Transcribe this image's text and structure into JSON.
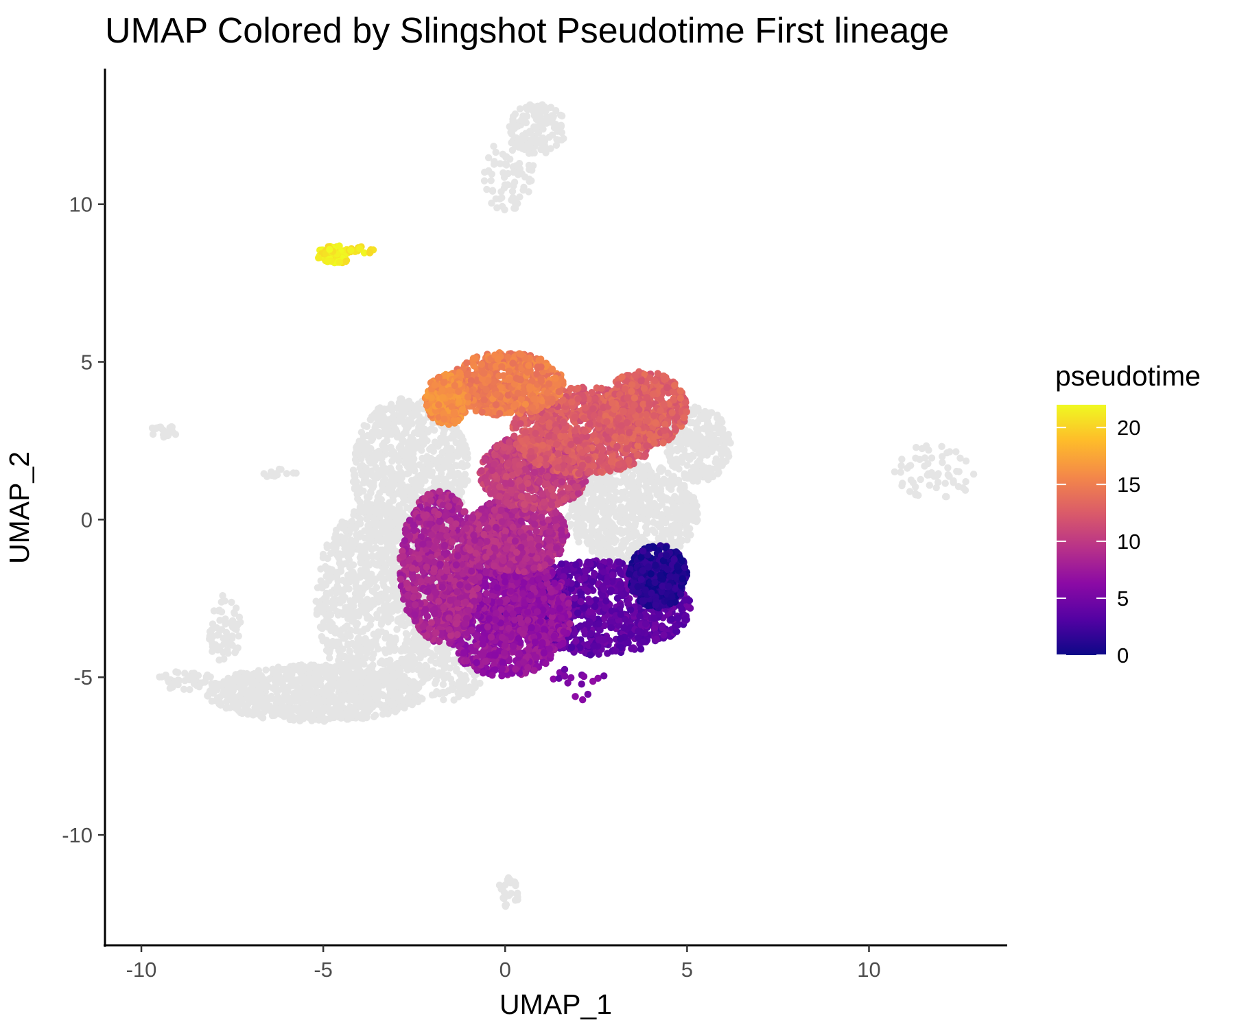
{
  "chart_data": {
    "type": "scatter",
    "title": "UMAP Colored by Slingshot Pseudotime First lineage",
    "xlabel": "UMAP_1",
    "ylabel": "UMAP_2",
    "xlim": [
      -11,
      13.8
    ],
    "ylim": [
      -13.5,
      14.3
    ],
    "x_ticks": [
      -10,
      -5,
      0,
      5,
      10
    ],
    "y_ticks": [
      -10,
      -5,
      0,
      5,
      10
    ],
    "x_tick_labels": [
      "-10",
      "-5",
      "0",
      "5",
      "10"
    ],
    "y_tick_labels": [
      "-10",
      "-5",
      "0",
      "5",
      "10"
    ],
    "grid": false,
    "legend": {
      "title": "pseudotime",
      "placement": "right",
      "min": 0,
      "max": 22,
      "ticks": [
        0,
        5,
        10,
        15,
        20
      ],
      "tick_labels": [
        "0",
        "5",
        "10",
        "15",
        "20"
      ],
      "colormap": "plasma",
      "colors": [
        "#0d0887",
        "#5302a3",
        "#8b0aa5",
        "#b83289",
        "#db5c68",
        "#f48849",
        "#febc2a",
        "#f0f921"
      ]
    },
    "na_color": "#e5e5e5",
    "series": [
      {
        "lineage_role": "not-in-lineage",
        "value": null,
        "color": "#e5e5e5",
        "regions": [
          {
            "cx": 0.9,
            "cy": 12.4,
            "rx": 0.8,
            "ry": 0.8,
            "n": 140
          },
          {
            "cx": 0.1,
            "cy": 10.9,
            "rx": 0.7,
            "ry": 1.2,
            "n": 70
          },
          {
            "cx": -9.4,
            "cy": 2.8,
            "rx": 0.4,
            "ry": 0.2,
            "n": 18
          },
          {
            "cx": -6.3,
            "cy": 1.5,
            "rx": 0.8,
            "ry": 0.15,
            "n": 12
          },
          {
            "cx": 11.8,
            "cy": 1.5,
            "rx": 1.1,
            "ry": 0.9,
            "n": 60
          },
          {
            "cx": 0.1,
            "cy": -11.8,
            "rx": 0.3,
            "ry": 0.5,
            "n": 25
          },
          {
            "cx": -7.7,
            "cy": -3.5,
            "rx": 0.45,
            "ry": 1.2,
            "n": 60
          },
          {
            "cx": -8.8,
            "cy": -5.1,
            "rx": 0.9,
            "ry": 0.3,
            "n": 40
          },
          {
            "cx": -5.2,
            "cy": -5.5,
            "rx": 3.0,
            "ry": 0.9,
            "n": 900
          },
          {
            "cx": -3.6,
            "cy": -2.5,
            "rx": 1.6,
            "ry": 3.0,
            "n": 900
          },
          {
            "cx": -2.6,
            "cy": 1.6,
            "rx": 1.6,
            "ry": 2.3,
            "n": 800
          },
          {
            "cx": -1.5,
            "cy": -3.0,
            "rx": 1.3,
            "ry": 2.8,
            "n": 600
          },
          {
            "cx": 3.5,
            "cy": 0.2,
            "rx": 1.8,
            "ry": 1.6,
            "n": 700
          },
          {
            "cx": 5.3,
            "cy": 2.4,
            "rx": 0.9,
            "ry": 1.2,
            "n": 250
          }
        ]
      },
      {
        "lineage_role": "lineage-main",
        "value_range": [
          0,
          16
        ],
        "regions": [
          {
            "cx": 2.5,
            "cy": -2.8,
            "rx": 2.6,
            "ry": 1.5,
            "value": 4,
            "n": 1000
          },
          {
            "cx": 4.2,
            "cy": -1.8,
            "rx": 0.8,
            "ry": 1.0,
            "value": 1,
            "n": 400
          },
          {
            "cx": 0.0,
            "cy": -3.0,
            "rx": 1.8,
            "ry": 2.0,
            "value": 7,
            "n": 1200
          },
          {
            "cx": -1.8,
            "cy": -1.5,
            "rx": 1.1,
            "ry": 2.4,
            "value": 8.5,
            "n": 900
          },
          {
            "cx": 0.3,
            "cy": -0.5,
            "rx": 1.4,
            "ry": 1.2,
            "value": 9,
            "n": 700
          },
          {
            "cx": 0.8,
            "cy": 1.5,
            "rx": 1.5,
            "ry": 1.2,
            "value": 10.5,
            "n": 700
          },
          {
            "cx": 2.2,
            "cy": 2.8,
            "rx": 2.0,
            "ry": 1.4,
            "value": 12.5,
            "n": 900
          },
          {
            "cx": 3.8,
            "cy": 3.5,
            "rx": 1.2,
            "ry": 1.2,
            "value": 13,
            "n": 500
          },
          {
            "cx": 0.0,
            "cy": 4.3,
            "rx": 1.6,
            "ry": 1.0,
            "value": 15,
            "n": 700
          },
          {
            "cx": -1.6,
            "cy": 3.8,
            "rx": 0.6,
            "ry": 0.8,
            "value": 16,
            "n": 250
          },
          {
            "cx": 2.1,
            "cy": -5.2,
            "rx": 0.8,
            "ry": 0.6,
            "value": 5.5,
            "n": 16
          }
        ]
      },
      {
        "lineage_role": "lineage-terminal",
        "value_range": [
          21,
          22
        ],
        "regions": [
          {
            "cx": -4.7,
            "cy": 8.4,
            "rx": 0.5,
            "ry": 0.3,
            "value": 21.5,
            "n": 80
          },
          {
            "cx": -3.9,
            "cy": 8.55,
            "rx": 0.35,
            "ry": 0.12,
            "value": 21,
            "n": 14
          }
        ]
      }
    ]
  }
}
